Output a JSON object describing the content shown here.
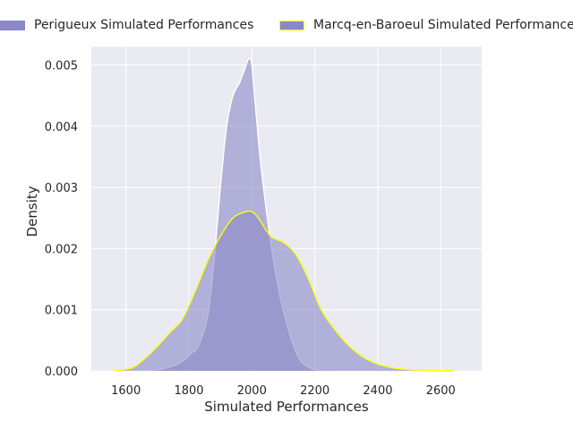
{
  "chart_data": {
    "type": "area",
    "title": "",
    "xlabel": "Simulated Performances",
    "ylabel": "Density",
    "xlim": [
      1490,
      2730
    ],
    "ylim": [
      0,
      0.0053
    ],
    "xticks": [
      "1600",
      "1800",
      "2000",
      "2200",
      "2400",
      "2600"
    ],
    "xtick_values": [
      1600,
      1800,
      2000,
      2200,
      2400,
      2600
    ],
    "yticks": [
      "0.000",
      "0.001",
      "0.002",
      "0.003",
      "0.004",
      "0.005"
    ],
    "ytick_values": [
      0,
      0.001,
      0.002,
      0.003,
      0.004,
      0.005
    ],
    "grid": true,
    "legend_placement": "top-center, above plot",
    "background": "#eaeaf2",
    "series": [
      {
        "name": "Perigueux Simulated Performances",
        "fill": "#8a88c6",
        "fill_opacity": 0.6,
        "edge": "#ffffff",
        "x": [
          1620,
          1700,
          1760,
          1790,
          1810,
          1830,
          1860,
          1880,
          1900,
          1920,
          1940,
          1960,
          1975,
          1990,
          2000,
          2010,
          2030,
          2060,
          2090,
          2120,
          2150,
          2180,
          2200,
          2210,
          2220
        ],
        "y": [
          0,
          2e-05,
          0.0001,
          0.0002,
          0.0003,
          0.0004,
          0.0009,
          0.0018,
          0.003,
          0.004,
          0.0045,
          0.0047,
          0.0049,
          0.0051,
          0.005,
          0.0044,
          0.0033,
          0.0021,
          0.0012,
          0.0006,
          0.0002,
          6e-05,
          2e-05,
          1e-05,
          0
        ]
      },
      {
        "name": "Marcq-en-Baroeul Simulated Performances",
        "fill": "#8a88c6",
        "fill_opacity": 0.6,
        "edge": "#ffff00",
        "x": [
          1560,
          1620,
          1660,
          1700,
          1740,
          1780,
          1820,
          1860,
          1900,
          1940,
          1980,
          2000,
          2020,
          2060,
          2100,
          2140,
          2180,
          2220,
          2260,
          2300,
          2340,
          2380,
          2420,
          2460,
          2500,
          2560,
          2640
        ],
        "y": [
          0,
          5e-05,
          0.0002,
          0.0004,
          0.00063,
          0.00085,
          0.0013,
          0.0018,
          0.0022,
          0.0025,
          0.0026,
          0.0026,
          0.0025,
          0.0022,
          0.0021,
          0.0019,
          0.0015,
          0.001,
          0.0007,
          0.00045,
          0.00027,
          0.00015,
          8e-05,
          4e-05,
          2e-05,
          1e-05,
          0
        ]
      }
    ]
  }
}
